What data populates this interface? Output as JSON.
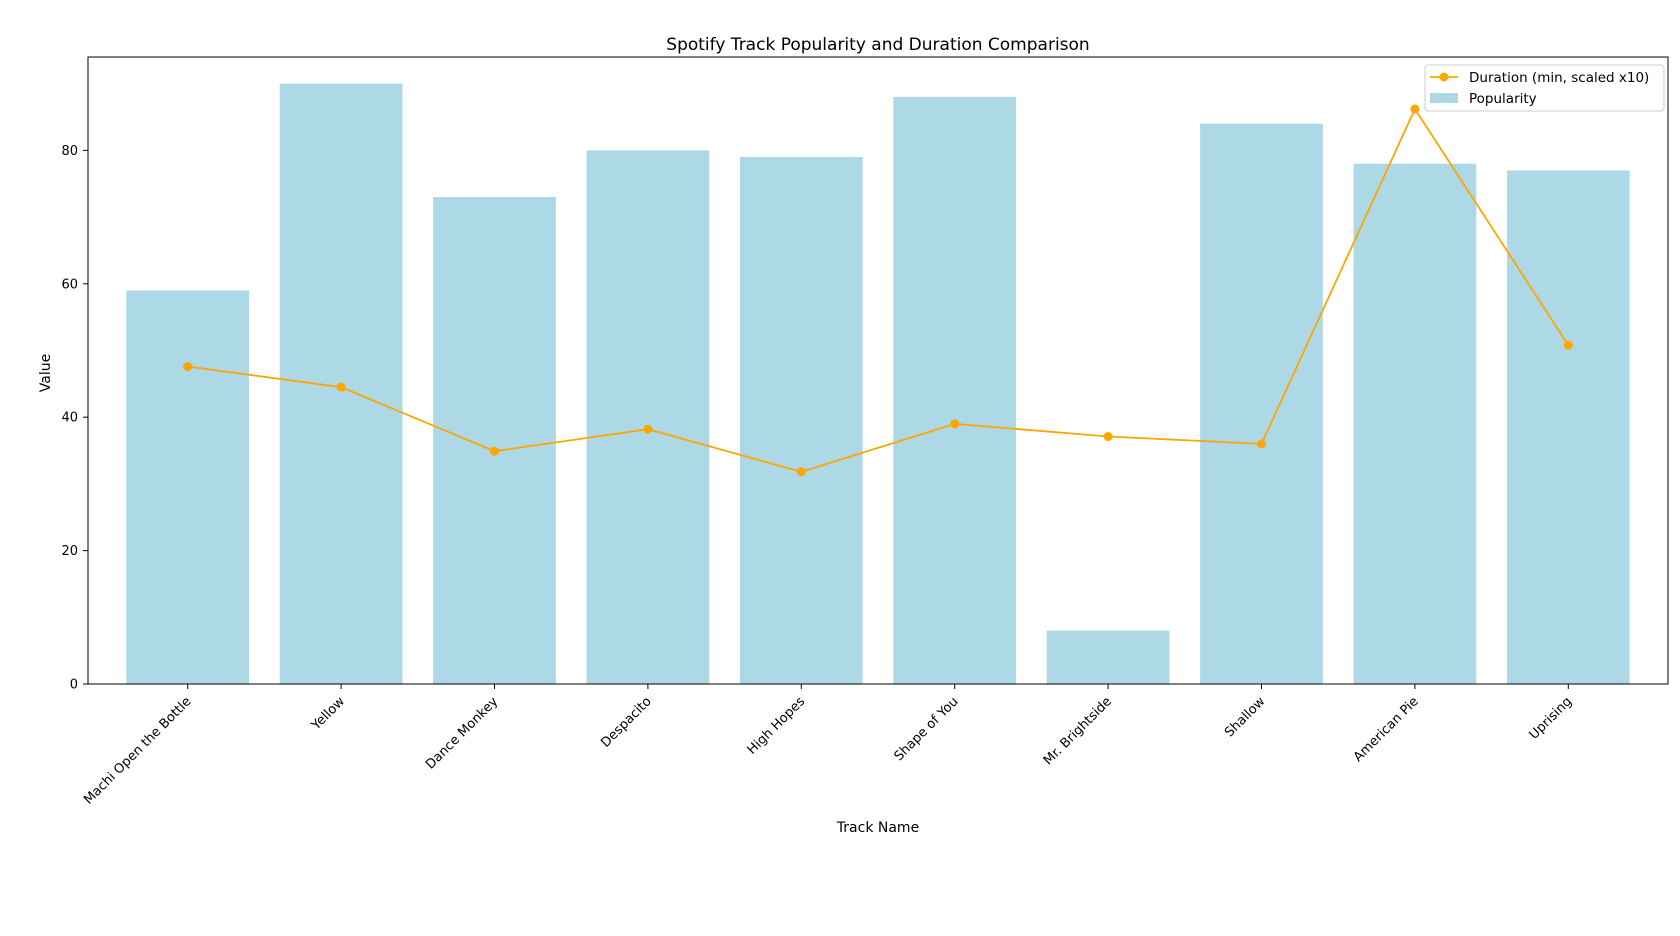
{
  "chart_data": {
    "type": "bar",
    "title": "Spotify Track Popularity and Duration Comparison",
    "xlabel": "Track Name",
    "ylabel": "Value",
    "categories": [
      "Machi Open the Bottle",
      "Yellow",
      "Dance Monkey",
      "Despacito",
      "High Hopes",
      "Shape of You",
      "Mr. Brightside",
      "Shallow",
      "American Pie",
      "Uprising"
    ],
    "ylim": [
      0,
      94
    ],
    "yticks": [
      0,
      20,
      40,
      60,
      80
    ],
    "grid": false,
    "legend_position": "top-right",
    "series": [
      {
        "name": "Popularity",
        "type": "bar",
        "color": "#add8e6",
        "values": [
          59,
          90,
          73,
          80,
          79,
          88,
          8,
          84,
          78,
          77
        ]
      },
      {
        "name": "Duration (min, scaled x10)",
        "type": "line",
        "color": "#ffa500",
        "marker": "circle",
        "values": [
          47.6,
          44.5,
          34.9,
          38.2,
          31.8,
          39.0,
          37.1,
          36.0,
          86.2,
          50.8
        ]
      }
    ],
    "legend_order": [
      "Duration (min, scaled x10)",
      "Popularity"
    ]
  }
}
